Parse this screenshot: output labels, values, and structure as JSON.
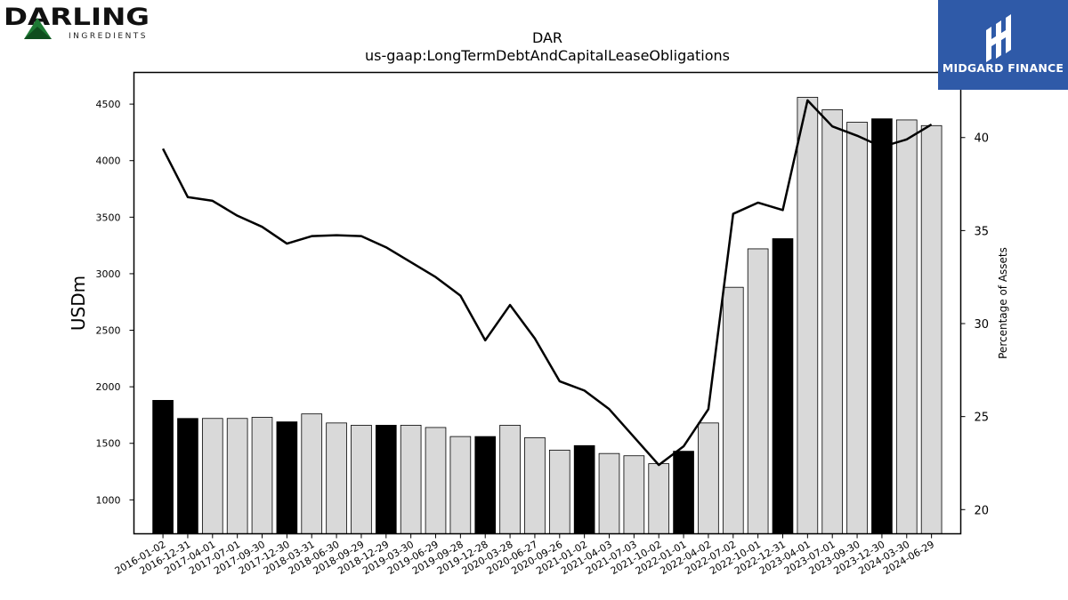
{
  "logos": {
    "left_brand": "DARLING",
    "left_sub": "INGREDIENTS",
    "right_brand": "MIDGARD FINANCE"
  },
  "colors": {
    "bar_highlight": "#000000",
    "bar_default": "#d9d9d9",
    "line": "#000000",
    "brand_blue": "#2f5aa8",
    "darling_green": "#1e7a34"
  },
  "chart_data": {
    "type": "bar",
    "title": "DAR",
    "subtitle": "us-gaap:LongTermDebtAndCapitalLeaseObligations",
    "ylabel": "USDm",
    "ylabel_right": "Percentage of Assets",
    "ylim": [
      700,
      4780
    ],
    "ylim_right": [
      18.7,
      43.5
    ],
    "yticks": [
      1000,
      1500,
      2000,
      2500,
      3000,
      3500,
      4000,
      4500
    ],
    "yticks_right": [
      20,
      25,
      30,
      35,
      40
    ],
    "grid": false,
    "categories": [
      "2016-01-02",
      "2016-12-31",
      "2017-04-01",
      "2017-07-01",
      "2017-09-30",
      "2017-12-30",
      "2018-03-31",
      "2018-06-30",
      "2018-09-29",
      "2018-12-29",
      "2019-03-30",
      "2019-06-29",
      "2019-09-28",
      "2019-12-28",
      "2020-03-28",
      "2020-06-27",
      "2020-09-26",
      "2021-01-02",
      "2021-04-03",
      "2021-07-03",
      "2021-10-02",
      "2022-01-01",
      "2022-04-02",
      "2022-07-02",
      "2022-10-01",
      "2022-12-31",
      "2023-04-01",
      "2023-07-01",
      "2023-09-30",
      "2023-12-30",
      "2024-03-30",
      "2024-06-29"
    ],
    "series": [
      {
        "kind": "bar",
        "axis": "left",
        "values": [
          1880,
          1720,
          1720,
          1720,
          1730,
          1690,
          1760,
          1680,
          1660,
          1660,
          1660,
          1640,
          1560,
          1560,
          1660,
          1550,
          1440,
          1480,
          1410,
          1390,
          1320,
          1430,
          1680,
          2880,
          3220,
          3310,
          4560,
          4450,
          4340,
          4370,
          4360,
          4310
        ],
        "highlight": [
          true,
          true,
          false,
          false,
          false,
          true,
          false,
          false,
          false,
          true,
          false,
          false,
          false,
          true,
          false,
          false,
          false,
          true,
          false,
          false,
          false,
          true,
          false,
          false,
          false,
          true,
          false,
          false,
          false,
          true,
          false,
          false
        ]
      },
      {
        "kind": "line",
        "axis": "right",
        "values": [
          39.4,
          36.8,
          36.6,
          35.8,
          35.2,
          34.3,
          34.7,
          34.75,
          34.7,
          34.1,
          33.3,
          32.5,
          31.5,
          29.1,
          31.0,
          29.2,
          26.9,
          26.4,
          25.4,
          23.9,
          22.4,
          23.4,
          25.4,
          35.9,
          36.5,
          36.1,
          42.0,
          40.6,
          40.1,
          39.5,
          39.9,
          40.7
        ]
      }
    ]
  }
}
